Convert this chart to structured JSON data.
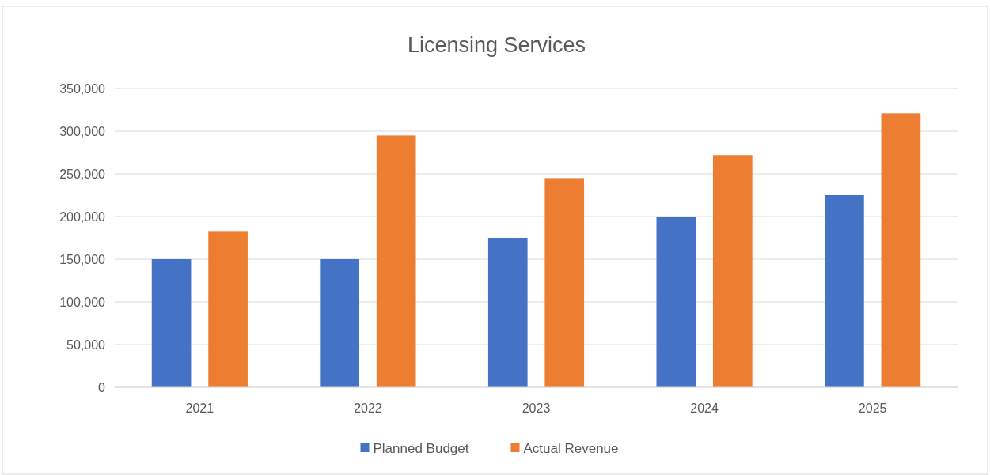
{
  "chart_data": {
    "type": "bar",
    "title": "Licensing Services",
    "categories": [
      "2021",
      "2022",
      "2023",
      "2024",
      "2025"
    ],
    "series": [
      {
        "name": "Planned Budget",
        "color": "#4472c4",
        "values": [
          150000,
          150000,
          175000,
          200000,
          225000
        ]
      },
      {
        "name": "Actual Revenue",
        "color": "#ed7d31",
        "values": [
          183000,
          295000,
          245000,
          272000,
          321000
        ]
      }
    ],
    "ylim": [
      0,
      350000
    ],
    "yticks": [
      {
        "value": 0,
        "label": "0"
      },
      {
        "value": 50000,
        "label": "50,000"
      },
      {
        "value": 100000,
        "label": "100,000"
      },
      {
        "value": 150000,
        "label": "150,000"
      },
      {
        "value": 200000,
        "label": "200,000"
      },
      {
        "value": 250000,
        "label": "250,000"
      },
      {
        "value": 300000,
        "label": "300,000"
      },
      {
        "value": 350000,
        "label": "350,000"
      }
    ],
    "grid": "y",
    "legend": "bottom"
  }
}
